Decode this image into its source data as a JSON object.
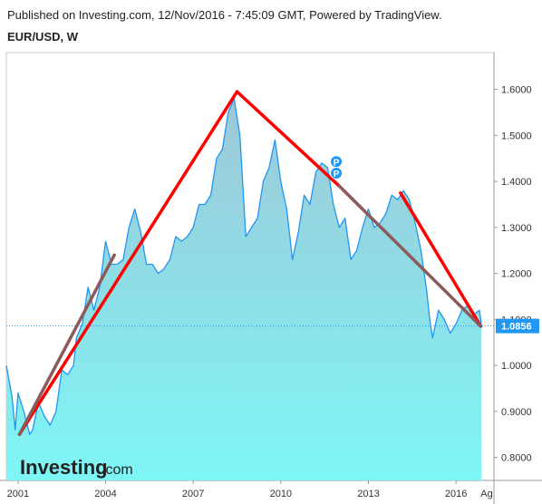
{
  "header": {
    "published": "Published on Investing.com, 12/Nov/2016 - 7:45:09 GMT, Powered by TradingView.",
    "symbol": "EUR/USD, W"
  },
  "logo": {
    "main": "Investing",
    "sub": ".com"
  },
  "colors": {
    "price_line": "#2196f3",
    "area_top": "#9ec7d7",
    "area_bottom": "#7ef6f6",
    "trend_red": "#ff0000",
    "trend_brown": "#8b5a5a",
    "current_price_bg": "#2196f3",
    "marker": "#2196f3"
  },
  "chart_data": {
    "type": "area",
    "title": "EUR/USD, W",
    "xlabel": "",
    "ylabel": "",
    "ylim": [
      0.75,
      1.68
    ],
    "xlim": [
      2000.6,
      2017.3
    ],
    "x_ticks": [
      "2001",
      "2004",
      "2007",
      "2010",
      "2013",
      "2016",
      "Ag"
    ],
    "y_ticks": [
      "0.8000",
      "0.9000",
      "1.0000",
      "1.1000",
      "1.2000",
      "1.3000",
      "1.4000",
      "1.5000",
      "1.6000"
    ],
    "grid": false,
    "current_price": "1.0856",
    "current_price_value": 1.0856,
    "series": [
      {
        "points": [
          [
            2000.6,
            1.0
          ],
          [
            2000.8,
            0.93
          ],
          [
            2000.9,
            0.86
          ],
          [
            2001.0,
            0.94
          ],
          [
            2001.2,
            0.9
          ],
          [
            2001.4,
            0.85
          ],
          [
            2001.5,
            0.86
          ],
          [
            2001.7,
            0.92
          ],
          [
            2001.9,
            0.89
          ],
          [
            2002.1,
            0.87
          ],
          [
            2002.3,
            0.9
          ],
          [
            2002.5,
            0.99
          ],
          [
            2002.7,
            0.98
          ],
          [
            2002.9,
            1.0
          ],
          [
            2003.0,
            1.06
          ],
          [
            2003.2,
            1.09
          ],
          [
            2003.4,
            1.17
          ],
          [
            2003.6,
            1.12
          ],
          [
            2003.8,
            1.17
          ],
          [
            2004.0,
            1.27
          ],
          [
            2004.2,
            1.22
          ],
          [
            2004.4,
            1.22
          ],
          [
            2004.6,
            1.23
          ],
          [
            2004.8,
            1.3
          ],
          [
            2005.0,
            1.34
          ],
          [
            2005.2,
            1.29
          ],
          [
            2005.4,
            1.22
          ],
          [
            2005.6,
            1.22
          ],
          [
            2005.8,
            1.2
          ],
          [
            2006.0,
            1.21
          ],
          [
            2006.2,
            1.23
          ],
          [
            2006.4,
            1.28
          ],
          [
            2006.6,
            1.27
          ],
          [
            2006.8,
            1.28
          ],
          [
            2007.0,
            1.3
          ],
          [
            2007.2,
            1.35
          ],
          [
            2007.4,
            1.35
          ],
          [
            2007.6,
            1.37
          ],
          [
            2007.8,
            1.45
          ],
          [
            2008.0,
            1.47
          ],
          [
            2008.2,
            1.55
          ],
          [
            2008.4,
            1.58
          ],
          [
            2008.6,
            1.5
          ],
          [
            2008.8,
            1.28
          ],
          [
            2009.0,
            1.3
          ],
          [
            2009.2,
            1.32
          ],
          [
            2009.4,
            1.4
          ],
          [
            2009.6,
            1.43
          ],
          [
            2009.8,
            1.49
          ],
          [
            2010.0,
            1.4
          ],
          [
            2010.2,
            1.34
          ],
          [
            2010.4,
            1.23
          ],
          [
            2010.6,
            1.29
          ],
          [
            2010.8,
            1.37
          ],
          [
            2011.0,
            1.35
          ],
          [
            2011.2,
            1.42
          ],
          [
            2011.4,
            1.44
          ],
          [
            2011.6,
            1.43
          ],
          [
            2011.8,
            1.35
          ],
          [
            2012.0,
            1.3
          ],
          [
            2012.2,
            1.32
          ],
          [
            2012.4,
            1.23
          ],
          [
            2012.6,
            1.25
          ],
          [
            2012.8,
            1.3
          ],
          [
            2013.0,
            1.34
          ],
          [
            2013.2,
            1.3
          ],
          [
            2013.4,
            1.31
          ],
          [
            2013.6,
            1.33
          ],
          [
            2013.8,
            1.37
          ],
          [
            2014.0,
            1.36
          ],
          [
            2014.2,
            1.38
          ],
          [
            2014.4,
            1.36
          ],
          [
            2014.6,
            1.31
          ],
          [
            2014.8,
            1.25
          ],
          [
            2015.0,
            1.16
          ],
          [
            2015.1,
            1.1
          ],
          [
            2015.2,
            1.06
          ],
          [
            2015.4,
            1.12
          ],
          [
            2015.6,
            1.1
          ],
          [
            2015.8,
            1.07
          ],
          [
            2016.0,
            1.09
          ],
          [
            2016.2,
            1.12
          ],
          [
            2016.4,
            1.13
          ],
          [
            2016.6,
            1.11
          ],
          [
            2016.8,
            1.12
          ],
          [
            2016.87,
            1.09
          ]
        ]
      }
    ],
    "trendlines": [
      {
        "color": "red",
        "points": [
          [
            2001.05,
            0.85
          ],
          [
            2008.5,
            1.595
          ]
        ]
      },
      {
        "color": "red",
        "points": [
          [
            2008.5,
            1.595
          ],
          [
            2012.0,
            1.39
          ]
        ]
      },
      {
        "color": "red",
        "points": [
          [
            2014.1,
            1.375
          ],
          [
            2016.85,
            1.085
          ]
        ]
      },
      {
        "color": "brown",
        "points": [
          [
            2012.0,
            1.39
          ],
          [
            2016.85,
            1.085
          ]
        ]
      },
      {
        "color": "brown",
        "points": [
          [
            2001.05,
            0.85
          ],
          [
            2004.3,
            1.24
          ]
        ]
      }
    ],
    "markers": [
      {
        "label": "P",
        "x": 2011.9,
        "y": 1.443
      },
      {
        "label": "P",
        "x": 2011.9,
        "y": 1.418
      }
    ]
  }
}
